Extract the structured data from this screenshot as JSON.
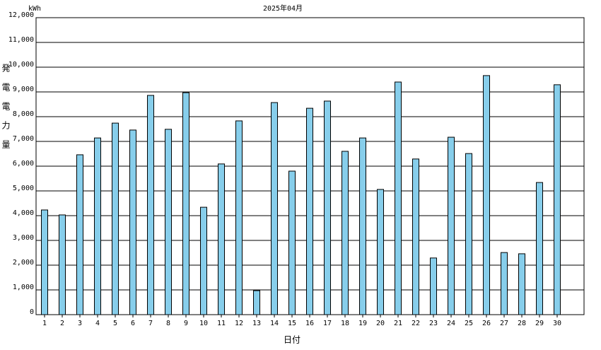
{
  "chart_data": {
    "type": "bar",
    "title": "2025年04月",
    "unit": "kWh",
    "y_label": "発電電力量",
    "x_label": "日付",
    "categories": [
      "1",
      "2",
      "3",
      "4",
      "5",
      "6",
      "7",
      "8",
      "9",
      "10",
      "11",
      "12",
      "13",
      "14",
      "15",
      "16",
      "17",
      "18",
      "19",
      "20",
      "21",
      "22",
      "23",
      "24",
      "25",
      "26",
      "27",
      "28",
      "29",
      "30"
    ],
    "values": [
      4230,
      4030,
      6460,
      7140,
      7740,
      7460,
      8860,
      7490,
      8970,
      4340,
      6090,
      7830,
      970,
      8570,
      5800,
      8340,
      8630,
      6600,
      7140,
      5060,
      9400,
      6290,
      2290,
      7170,
      6510,
      9660,
      2510,
      2460,
      5340,
      9290
    ],
    "color": "#87ceeb",
    "ylim": [
      0,
      12000
    ],
    "yticks": [
      0,
      {
        "value": 1000,
        "label": "1,000"
      },
      {
        "value": 2000,
        "label": "2,000"
      },
      {
        "value": 3000,
        "label": "3,000"
      },
      {
        "value": 4000,
        "label": "4,000"
      },
      {
        "value": 5000,
        "label": "5,000"
      },
      {
        "value": 6000,
        "label": "6,000"
      },
      {
        "value": 7000,
        "label": "7,000"
      },
      {
        "value": 8000,
        "label": "8,000"
      },
      {
        "value": 9000,
        "label": "9,000"
      },
      {
        "value": 10000,
        "label": "10,000"
      },
      {
        "value": 11000,
        "label": "11,000"
      },
      {
        "value": 12000,
        "label": "12,000"
      }
    ],
    "grid": true
  }
}
